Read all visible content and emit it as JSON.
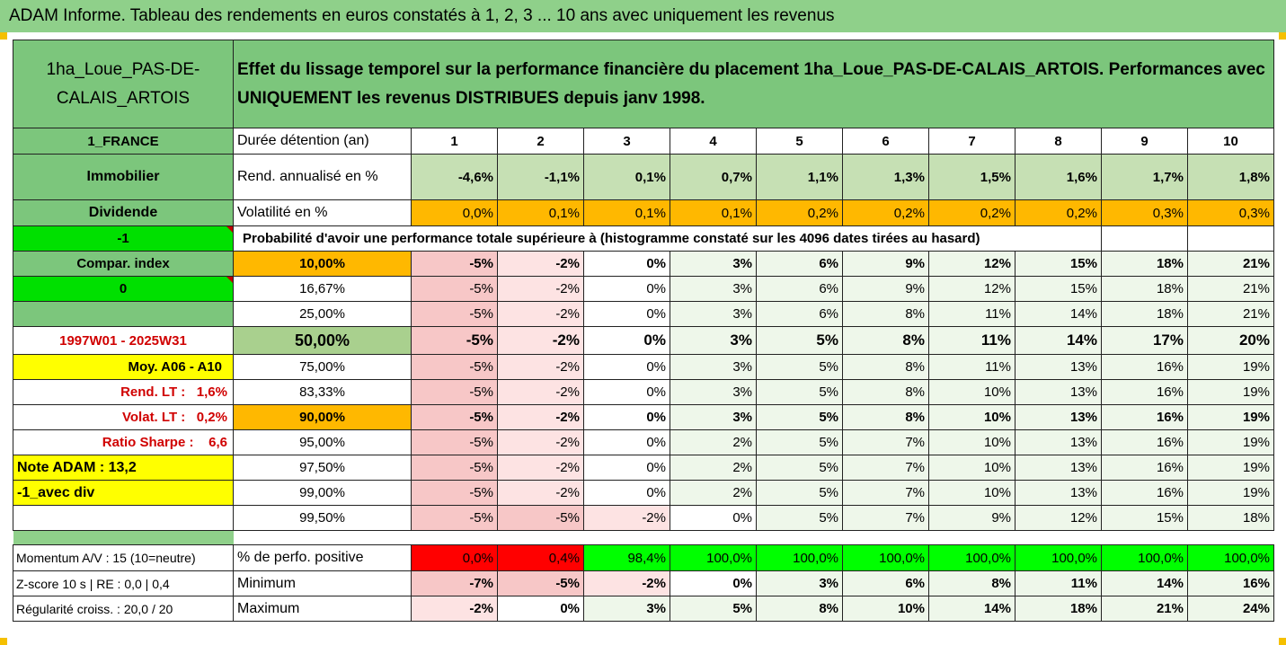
{
  "title": "ADAM Informe. Tableau des rendements en euros constatés à 1, 2, 3 ... 10 ans avec uniquement les revenus",
  "fund_name": "1ha_Loue_PAS-DE-CALAIS_ARTOIS",
  "description": "Effet du lissage temporel sur la performance financière du placement 1ha_Loue_PAS-DE-CALAIS_ARTOIS. Performances avec UNIQUEMENT les revenus DISTRIBUES depuis janv 1998.",
  "side": {
    "country": "1_FRANCE",
    "category": "Immobilier",
    "dividend": "Dividende",
    "minus_one": "-1",
    "compar": "Compar. index",
    "zero": "0",
    "period": "1997W01 - 2025W31",
    "moy": "Moy. A06 - A10",
    "rend_lt_label": "Rend. LT :",
    "rend_lt_value": "1,6%",
    "volat_lt_label": "Volat. LT :",
    "volat_lt_value": "0,2%",
    "sharpe_label": "Ratio Sharpe :",
    "sharpe_value": "6,6",
    "note": "Note ADAM : 13,2",
    "avec_div": "-1_avec div",
    "momentum": "Momentum A/V : 15 (10=neutre)",
    "zscore": "Z-score 10 s | RE : 0,0 | 0,4",
    "regularite": "Régularité croiss. : 20,0 / 20"
  },
  "labels": {
    "duree": "Durée détention (an)",
    "rend": "Rend. annualisé en %",
    "vol": "Volatilité en %",
    "proba": "Probabilité d'avoir une performance totale supérieure à (histogramme constaté sur les 4096 dates tirées au hasard)",
    "pos": "% de perfo. positive",
    "min": "Minimum",
    "max": "Maximum"
  },
  "years": [
    "1",
    "2",
    "3",
    "4",
    "5",
    "6",
    "7",
    "8",
    "9",
    "10"
  ],
  "rend": [
    "-4,6%",
    "-1,1%",
    "0,1%",
    "0,7%",
    "1,1%",
    "1,3%",
    "1,5%",
    "1,6%",
    "1,7%",
    "1,8%"
  ],
  "vol": [
    "0,0%",
    "0,1%",
    "0,1%",
    "0,1%",
    "0,2%",
    "0,2%",
    "0,2%",
    "0,2%",
    "0,3%",
    "0,3%"
  ],
  "percentiles": [
    {
      "p": "10,00%",
      "v": [
        "-5%",
        "-2%",
        "0%",
        "3%",
        "6%",
        "9%",
        "12%",
        "15%",
        "18%",
        "21%"
      ]
    },
    {
      "p": "16,67%",
      "v": [
        "-5%",
        "-2%",
        "0%",
        "3%",
        "6%",
        "9%",
        "12%",
        "15%",
        "18%",
        "21%"
      ]
    },
    {
      "p": "25,00%",
      "v": [
        "-5%",
        "-2%",
        "0%",
        "3%",
        "6%",
        "8%",
        "11%",
        "14%",
        "18%",
        "21%"
      ]
    },
    {
      "p": "50,00%",
      "v": [
        "-5%",
        "-2%",
        "0%",
        "3%",
        "5%",
        "8%",
        "11%",
        "14%",
        "17%",
        "20%"
      ]
    },
    {
      "p": "75,00%",
      "v": [
        "-5%",
        "-2%",
        "0%",
        "3%",
        "5%",
        "8%",
        "11%",
        "13%",
        "16%",
        "19%"
      ]
    },
    {
      "p": "83,33%",
      "v": [
        "-5%",
        "-2%",
        "0%",
        "3%",
        "5%",
        "8%",
        "10%",
        "13%",
        "16%",
        "19%"
      ]
    },
    {
      "p": "90,00%",
      "v": [
        "-5%",
        "-2%",
        "0%",
        "3%",
        "5%",
        "8%",
        "10%",
        "13%",
        "16%",
        "19%"
      ]
    },
    {
      "p": "95,00%",
      "v": [
        "-5%",
        "-2%",
        "0%",
        "2%",
        "5%",
        "7%",
        "10%",
        "13%",
        "16%",
        "19%"
      ]
    },
    {
      "p": "97,50%",
      "v": [
        "-5%",
        "-2%",
        "0%",
        "2%",
        "5%",
        "7%",
        "10%",
        "13%",
        "16%",
        "19%"
      ]
    },
    {
      "p": "99,00%",
      "v": [
        "-5%",
        "-2%",
        "0%",
        "2%",
        "5%",
        "7%",
        "10%",
        "13%",
        "16%",
        "19%"
      ]
    },
    {
      "p": "99,50%",
      "v": [
        "-5%",
        "-5%",
        "-2%",
        "0%",
        "5%",
        "7%",
        "9%",
        "12%",
        "15%",
        "18%"
      ]
    }
  ],
  "pos": [
    "0,0%",
    "0,4%",
    "98,4%",
    "100,0%",
    "100,0%",
    "100,0%",
    "100,0%",
    "100,0%",
    "100,0%",
    "100,0%"
  ],
  "min": [
    "-7%",
    "-5%",
    "-2%",
    "0%",
    "3%",
    "6%",
    "8%",
    "11%",
    "14%",
    "16%"
  ],
  "max": [
    "-2%",
    "0%",
    "3%",
    "5%",
    "8%",
    "10%",
    "14%",
    "18%",
    "21%",
    "24%"
  ]
}
